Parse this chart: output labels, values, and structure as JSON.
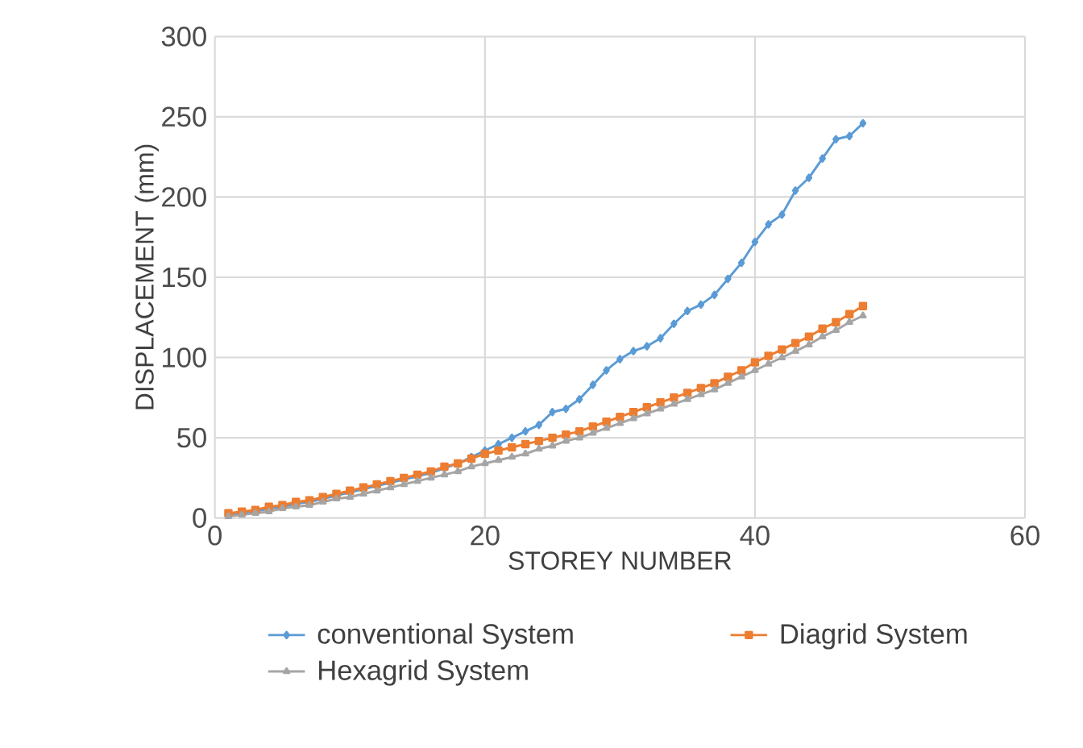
{
  "chart_data": {
    "type": "line",
    "xlabel": "STOREY NUMBER",
    "ylabel": "DISPLACEMENT (mm)",
    "x": [
      1,
      2,
      3,
      4,
      5,
      6,
      7,
      8,
      9,
      10,
      11,
      12,
      13,
      14,
      15,
      16,
      17,
      18,
      19,
      20,
      21,
      22,
      23,
      24,
      25,
      26,
      27,
      28,
      29,
      30,
      31,
      32,
      33,
      34,
      35,
      36,
      37,
      38,
      39,
      40,
      41,
      42,
      43,
      44,
      45,
      46,
      47,
      48
    ],
    "series": [
      {
        "name": "conventional System",
        "color": "#5b9bd5",
        "marker": "diamond",
        "values": [
          2,
          3,
          4,
          6,
          7,
          9,
          10,
          12,
          14,
          16,
          18,
          20,
          22,
          24,
          26,
          28,
          31,
          34,
          38,
          42,
          46,
          50,
          54,
          58,
          66,
          68,
          74,
          83,
          92,
          99,
          104,
          107,
          112,
          121,
          129,
          133,
          139,
          149,
          159,
          172,
          183,
          189,
          204,
          212,
          224,
          236,
          238,
          246
        ]
      },
      {
        "name": "Diagrid System",
        "color": "#ed7d31",
        "marker": "square",
        "values": [
          3,
          4,
          5,
          7,
          8,
          10,
          11,
          13,
          15,
          17,
          19,
          21,
          23,
          25,
          27,
          29,
          32,
          34,
          37,
          40,
          42,
          44,
          46,
          48,
          50,
          52,
          54,
          57,
          60,
          63,
          66,
          69,
          72,
          75,
          78,
          81,
          84,
          88,
          92,
          97,
          101,
          105,
          109,
          113,
          118,
          122,
          127,
          132
        ]
      },
      {
        "name": "Hexagrid System",
        "color": "#a5a5a5",
        "marker": "triangle",
        "values": [
          1,
          2,
          3,
          4,
          6,
          7,
          8,
          10,
          12,
          13,
          15,
          17,
          19,
          21,
          23,
          25,
          27,
          29,
          32,
          34,
          36,
          38,
          40,
          43,
          45,
          48,
          50,
          53,
          56,
          59,
          62,
          65,
          68,
          71,
          74,
          77,
          80,
          84,
          88,
          92,
          96,
          100,
          104,
          108,
          113,
          117,
          122,
          126
        ]
      }
    ],
    "xlim": [
      0,
      60
    ],
    "xticks": [
      0,
      20,
      40,
      60
    ],
    "ylim": [
      0,
      300
    ],
    "yticks": [
      0,
      50,
      100,
      150,
      200,
      250,
      300
    ],
    "grid": true,
    "legend": "bottom",
    "line_style": "solid"
  }
}
